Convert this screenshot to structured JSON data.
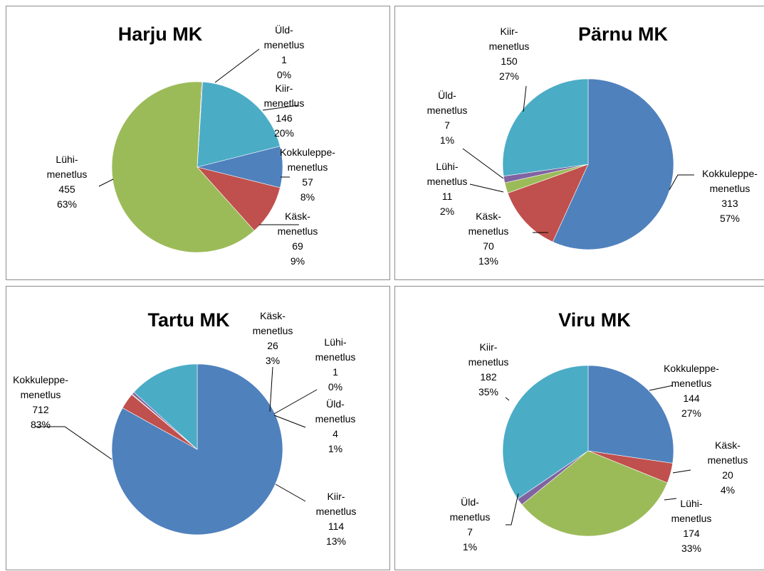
{
  "colors": {
    "Kokkuleppe": "#4f81bd",
    "Käsk": "#c0504d",
    "Lühi": "#9bbb59",
    "Üld": "#8064a2",
    "Kiir": "#4bacc6"
  },
  "chart_data": [
    {
      "type": "pie",
      "title": "Harju MK",
      "slices": [
        {
          "key": "Kiir",
          "name": "Kiir-menetlus",
          "line1": "Kiir-",
          "line2": "menetlus",
          "value": 146,
          "percent": "20%"
        },
        {
          "key": "Kokkuleppe",
          "name": "Kokkuleppe-menetlus",
          "line1": "Kokkuleppe-",
          "line2": "menetlus",
          "value": 57,
          "percent": "8%"
        },
        {
          "key": "Käsk",
          "name": "Käsk-menetlus",
          "line1": "Käsk-",
          "line2": "menetlus",
          "value": 69,
          "percent": "9%"
        },
        {
          "key": "Lühi",
          "name": "Lühi-menetlus",
          "line1": "Lühi-",
          "line2": "menetlus",
          "value": 455,
          "percent": "63%"
        },
        {
          "key": "Üld",
          "name": "Üld-menetlus",
          "line1": "Üld-",
          "line2": "menetlus",
          "value": 1,
          "percent": "0%"
        }
      ]
    },
    {
      "type": "pie",
      "title": "Pärnu MK",
      "slices": [
        {
          "key": "Kokkuleppe",
          "name": "Kokkuleppe-menetlus",
          "line1": "Kokkuleppe-",
          "line2": "menetlus",
          "value": 313,
          "percent": "57%"
        },
        {
          "key": "Käsk",
          "name": "Käsk-menetlus",
          "line1": "Käsk-",
          "line2": "menetlus",
          "value": 70,
          "percent": "13%"
        },
        {
          "key": "Lühi",
          "name": "Lühi-menetlus",
          "line1": "Lühi-",
          "line2": "menetlus",
          "value": 11,
          "percent": "2%"
        },
        {
          "key": "Üld",
          "name": "Üld-menetlus",
          "line1": "Üld-",
          "line2": "menetlus",
          "value": 7,
          "percent": "1%"
        },
        {
          "key": "Kiir",
          "name": "Kiir-menetlus",
          "line1": "Kiir-",
          "line2": "menetlus",
          "value": 150,
          "percent": "27%"
        }
      ]
    },
    {
      "type": "pie",
      "title": "Tartu MK",
      "slices": [
        {
          "key": "Kokkuleppe",
          "name": "Kokkuleppe-menetlus",
          "line1": "Kokkuleppe-",
          "line2": "menetlus",
          "value": 712,
          "percent": "83%"
        },
        {
          "key": "Käsk",
          "name": "Käsk-menetlus",
          "line1": "Käsk-",
          "line2": "menetlus",
          "value": 26,
          "percent": "3%"
        },
        {
          "key": "Lühi",
          "name": "Lühi-menetlus",
          "line1": "Lühi-",
          "line2": "menetlus",
          "value": 1,
          "percent": "0%"
        },
        {
          "key": "Üld",
          "name": "Üld-menetlus",
          "line1": "Üld-",
          "line2": "menetlus",
          "value": 4,
          "percent": "1%"
        },
        {
          "key": "Kiir",
          "name": "Kiir-menetlus",
          "line1": "Kiir-",
          "line2": "menetlus",
          "value": 114,
          "percent": "13%"
        }
      ]
    },
    {
      "type": "pie",
      "title": "Viru MK",
      "slices": [
        {
          "key": "Kokkuleppe",
          "name": "Kokkuleppe-menetlus",
          "line1": "Kokkuleppe-",
          "line2": "menetlus",
          "value": 144,
          "percent": "27%"
        },
        {
          "key": "Käsk",
          "name": "Käsk-menetlus",
          "line1": "Käsk-",
          "line2": "menetlus",
          "value": 20,
          "percent": "4%"
        },
        {
          "key": "Lühi",
          "name": "Lühi-menetlus",
          "line1": "Lühi-",
          "line2": "menetlus",
          "value": 174,
          "percent": "33%"
        },
        {
          "key": "Üld",
          "name": "Üld-menetlus",
          "line1": "Üld-",
          "line2": "menetlus",
          "value": 7,
          "percent": "1%"
        },
        {
          "key": "Kiir",
          "name": "Kiir-menetlus",
          "line1": "Kiir-",
          "line2": "menetlus",
          "value": 182,
          "percent": "35%"
        }
      ]
    }
  ]
}
